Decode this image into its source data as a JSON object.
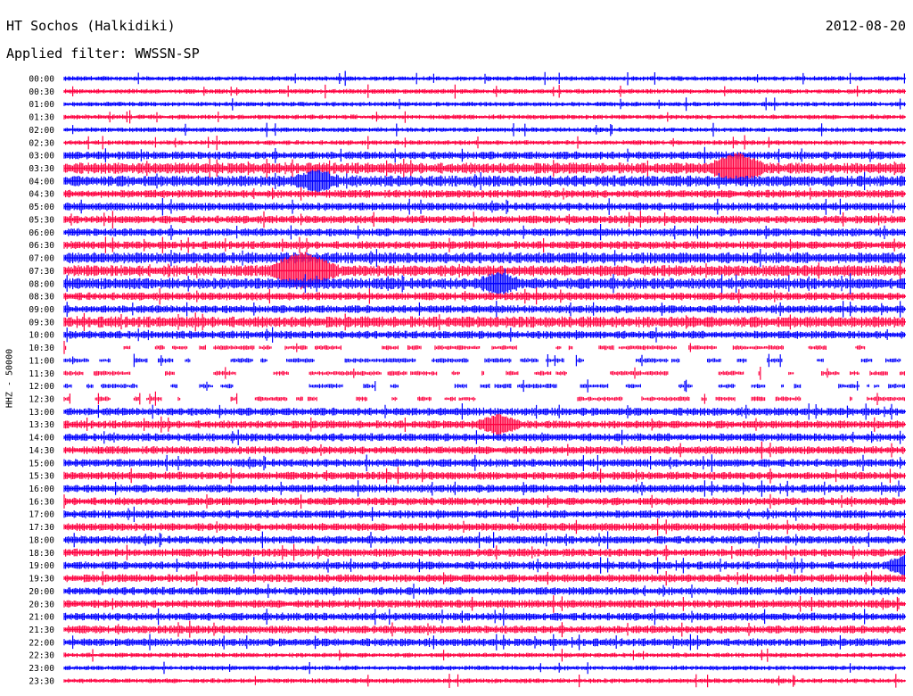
{
  "header": {
    "station": "HT Sochos (Halkidiki)",
    "filter": "Applied filter: WWSSN-SP",
    "date": "2012-08-20"
  },
  "axis": {
    "channel_label": "HHZ - 50000"
  },
  "colors": {
    "odd_trace": "#0000ff",
    "even_trace": "#ff0040",
    "background": "#ffffff"
  },
  "chart_data": {
    "type": "helicorder",
    "title": "HT Sochos (Halkidiki)",
    "subtitle": "Applied filter: WWSSN-SP",
    "ylabel": "HHZ - 50000",
    "row_minutes": 30,
    "rows": [
      {
        "label": "00:00",
        "level": 1
      },
      {
        "label": "00:30",
        "level": 1
      },
      {
        "label": "01:00",
        "level": 1
      },
      {
        "label": "01:30",
        "level": 1
      },
      {
        "label": "02:00",
        "level": 1
      },
      {
        "label": "02:30",
        "level": 1
      },
      {
        "label": "03:00",
        "level": 2
      },
      {
        "label": "03:30",
        "level": 3
      },
      {
        "label": "04:00",
        "level": 3
      },
      {
        "label": "04:30",
        "level": 2
      },
      {
        "label": "05:00",
        "level": 2
      },
      {
        "label": "05:30",
        "level": 2
      },
      {
        "label": "06:00",
        "level": 2
      },
      {
        "label": "06:30",
        "level": 2
      },
      {
        "label": "07:00",
        "level": 3
      },
      {
        "label": "07:30",
        "level": 3
      },
      {
        "label": "08:00",
        "level": 3
      },
      {
        "label": "08:30",
        "level": 2
      },
      {
        "label": "09:00",
        "level": 2
      },
      {
        "label": "09:30",
        "level": 3
      },
      {
        "label": "10:00",
        "level": 2
      },
      {
        "label": "10:30",
        "level": 1
      },
      {
        "label": "11:00",
        "level": 1
      },
      {
        "label": "11:30",
        "level": 1
      },
      {
        "label": "12:00",
        "level": 1
      },
      {
        "label": "12:30",
        "level": 1
      },
      {
        "label": "13:00",
        "level": 2
      },
      {
        "label": "13:30",
        "level": 2
      },
      {
        "label": "14:00",
        "level": 2
      },
      {
        "label": "14:30",
        "level": 2
      },
      {
        "label": "15:00",
        "level": 2
      },
      {
        "label": "15:30",
        "level": 2
      },
      {
        "label": "16:00",
        "level": 2
      },
      {
        "label": "16:30",
        "level": 2
      },
      {
        "label": "17:00",
        "level": 2
      },
      {
        "label": "17:30",
        "level": 2
      },
      {
        "label": "18:00",
        "level": 2
      },
      {
        "label": "18:30",
        "level": 2
      },
      {
        "label": "19:00",
        "level": 2
      },
      {
        "label": "19:30",
        "level": 2
      },
      {
        "label": "20:00",
        "level": 2
      },
      {
        "label": "20:30",
        "level": 2
      },
      {
        "label": "21:00",
        "level": 2
      },
      {
        "label": "21:30",
        "level": 2
      },
      {
        "label": "22:00",
        "level": 2
      },
      {
        "label": "22:30",
        "level": 1
      },
      {
        "label": "23:00",
        "level": 1
      },
      {
        "label": "23:30",
        "level": 1
      }
    ],
    "gap_rows": [
      "10:30",
      "11:00",
      "11:30",
      "12:00",
      "12:30"
    ],
    "events": [
      {
        "row": "03:30",
        "minute": 24,
        "strength": 3
      },
      {
        "row": "07:30",
        "minute": 8.5,
        "strength": 4
      },
      {
        "row": "08:00",
        "minute": 15.5,
        "strength": 2
      },
      {
        "row": "13:30",
        "minute": 15.5,
        "strength": 2
      },
      {
        "row": "04:00",
        "minute": 9,
        "strength": 2
      },
      {
        "row": "19:00",
        "minute": 30,
        "strength": 2
      }
    ]
  }
}
